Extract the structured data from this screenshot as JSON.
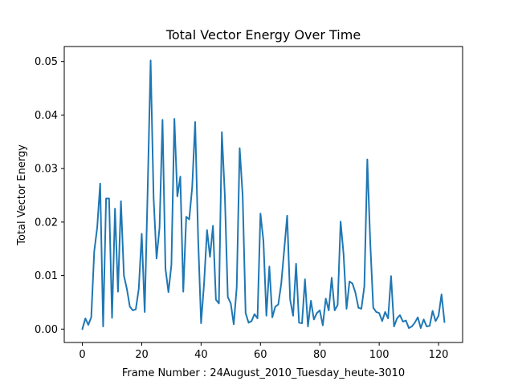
{
  "chart_data": {
    "type": "line",
    "title": "Total Vector Energy Over Time",
    "xlabel": "Frame Number : 24August_2010_Tuesday_heute-3010",
    "ylabel": "Total Vector Energy",
    "xlim": [
      -6.1,
      128.1
    ],
    "ylim": [
      -0.0025,
      0.0528
    ],
    "xticks": [
      0,
      20,
      40,
      60,
      80,
      100,
      120
    ],
    "xtick_labels": [
      "0",
      "20",
      "40",
      "60",
      "80",
      "100",
      "120"
    ],
    "yticks": [
      0.0,
      0.01,
      0.02,
      0.03,
      0.04,
      0.05
    ],
    "ytick_labels": [
      "0.00",
      "0.01",
      "0.02",
      "0.03",
      "0.04",
      "0.05"
    ],
    "grid": false,
    "line_color": "#1f77b4",
    "series": [
      {
        "x": [
          0,
          1,
          2,
          3,
          4,
          5,
          6,
          7,
          8,
          9,
          10,
          11,
          12,
          13,
          14,
          15,
          16,
          17,
          18,
          19,
          20,
          21,
          22,
          23,
          24,
          25,
          26,
          27,
          28,
          29,
          30,
          31,
          32,
          33,
          34,
          35,
          36,
          37,
          38,
          39,
          40,
          41,
          42,
          43,
          44,
          45,
          46,
          47,
          48,
          49,
          50,
          51,
          52,
          53,
          54,
          55,
          56,
          57,
          58,
          59,
          60,
          61,
          62,
          63,
          64,
          65,
          66,
          67,
          68,
          69,
          70,
          71,
          72,
          73,
          74,
          75,
          76,
          77,
          78,
          79,
          80,
          81,
          82,
          83,
          84,
          85,
          86,
          87,
          88,
          89,
          90,
          91,
          92,
          93,
          94,
          95,
          96,
          97,
          98,
          99,
          100,
          101,
          102,
          103,
          104,
          105,
          106,
          107,
          108,
          109,
          110,
          111,
          112,
          113,
          114,
          115,
          116,
          117,
          118,
          119,
          120,
          121,
          122
        ],
        "values": [
          0.0,
          0.002,
          0.0008,
          0.0022,
          0.0145,
          0.019,
          0.0272,
          0.0005,
          0.0244,
          0.0244,
          0.0021,
          0.0225,
          0.007,
          0.0239,
          0.01,
          0.0075,
          0.0042,
          0.0035,
          0.0037,
          0.0075,
          0.0178,
          0.0032,
          0.026,
          0.0502,
          0.0245,
          0.0132,
          0.019,
          0.0391,
          0.0113,
          0.0069,
          0.012,
          0.0393,
          0.0248,
          0.0285,
          0.007,
          0.021,
          0.0205,
          0.0265,
          0.0387,
          0.017,
          0.0011,
          0.0085,
          0.0185,
          0.0135,
          0.0193,
          0.0055,
          0.0048,
          0.0368,
          0.025,
          0.006,
          0.0048,
          0.0009,
          0.0078,
          0.0338,
          0.025,
          0.003,
          0.0012,
          0.0015,
          0.0028,
          0.002,
          0.0216,
          0.0165,
          0.0025,
          0.0117,
          0.0022,
          0.0042,
          0.0046,
          0.0085,
          0.0148,
          0.0212,
          0.0055,
          0.0025,
          0.0122,
          0.0012,
          0.0011,
          0.0093,
          0.0005,
          0.0053,
          0.0018,
          0.003,
          0.0035,
          0.0007,
          0.0057,
          0.0035,
          0.0096,
          0.0035,
          0.0045,
          0.0201,
          0.014,
          0.0038,
          0.0089,
          0.0085,
          0.0068,
          0.004,
          0.0038,
          0.008,
          0.0317,
          0.016,
          0.004,
          0.0032,
          0.003,
          0.0015,
          0.0032,
          0.002,
          0.0099,
          0.0005,
          0.002,
          0.0026,
          0.0014,
          0.0016,
          0.0002,
          0.0005,
          0.0012,
          0.0022,
          0.0002,
          0.0018,
          0.0005,
          0.0006,
          0.0034,
          0.0015,
          0.0025,
          0.0065,
          0.0013
        ]
      }
    ]
  }
}
